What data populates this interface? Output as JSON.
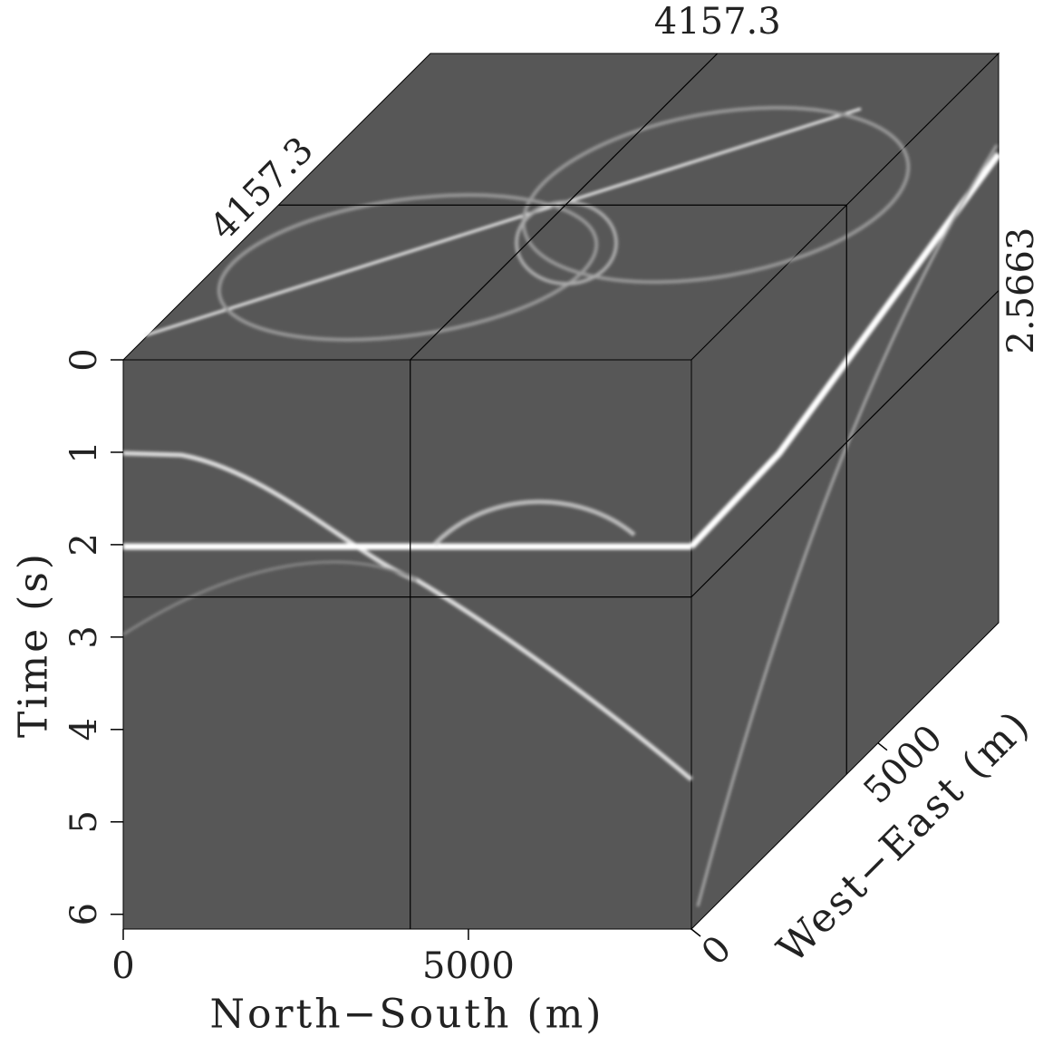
{
  "chart_data": {
    "type": "cube3d",
    "xlabel": "North−South (m)",
    "ylabel": "Time (s)",
    "zlabel": "West−East (m)",
    "xlim": [
      0,
      8230
    ],
    "ylim": [
      0,
      6.16
    ],
    "zlim": [
      0,
      8230
    ],
    "xticks": [
      0,
      5000
    ],
    "yticks": [
      0,
      1,
      2,
      3,
      4,
      5,
      6
    ],
    "zticks": [
      0,
      5000
    ],
    "slices": {
      "x": 4157.3,
      "y": 2.5663,
      "z": 4157.3
    },
    "face_color": "#575757"
  }
}
